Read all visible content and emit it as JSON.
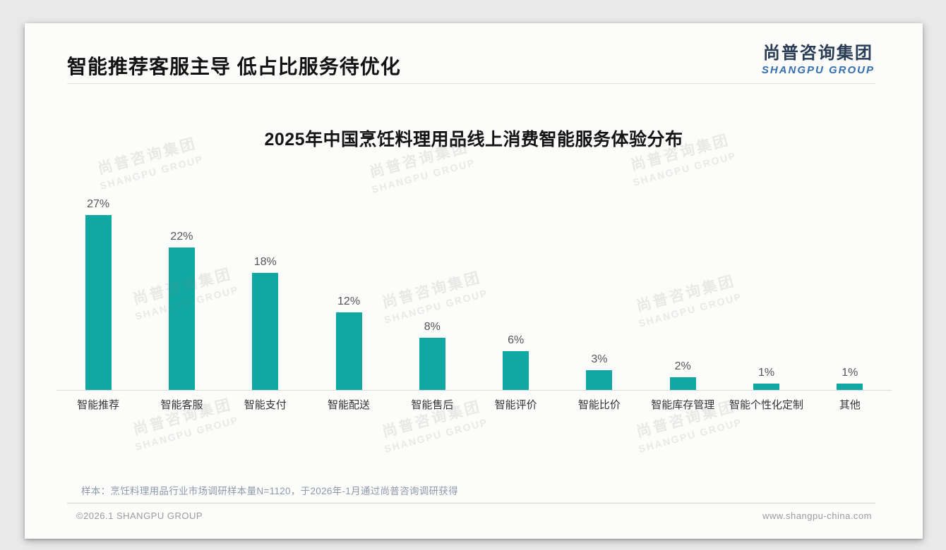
{
  "page": {
    "main_title": "智能推荐客服主导 低占比服务待优化",
    "logo": {
      "cn": "尚普咨询集团",
      "en": "SHANGPU GROUP"
    },
    "watermark": {
      "cn": "尚普咨询集团",
      "en": "SHANGPU GROUP"
    },
    "footnote": "样本：烹饪料理用品行业市场调研样本量N=1120，于2026年-1月通过尚普咨询调研获得",
    "footer_left": "©2026.1 SHANGPU GROUP",
    "footer_right": "www.shangpu-china.com"
  },
  "colors": {
    "bar": "#10a8a2",
    "logo_cn": "#2a3c55",
    "logo_en": "#336fae",
    "title_text": "#121212",
    "value_label": "#555555",
    "category_label": "#333333",
    "footnote_text": "#8d99a9",
    "footer_text": "#9b9b9b"
  },
  "chart_data": {
    "type": "bar",
    "title": "2025年中国烹饪料理用品线上消费智能服务体验分布",
    "categories": [
      "智能推荐",
      "智能客服",
      "智能支付",
      "智能配送",
      "智能售后",
      "智能评价",
      "智能比价",
      "智能库存管理",
      "智能个性化定制",
      "其他"
    ],
    "values": [
      27,
      22,
      18,
      12,
      8,
      6,
      3,
      2,
      1,
      1
    ],
    "value_labels": [
      "27%",
      "22%",
      "18%",
      "12%",
      "8%",
      "6%",
      "3%",
      "2%",
      "1%",
      "1%"
    ],
    "unit": "%",
    "ylim": [
      0,
      30
    ],
    "xlabel": "",
    "ylabel": "",
    "grid": false,
    "legend": false,
    "bar_color": "#10a8a2"
  }
}
